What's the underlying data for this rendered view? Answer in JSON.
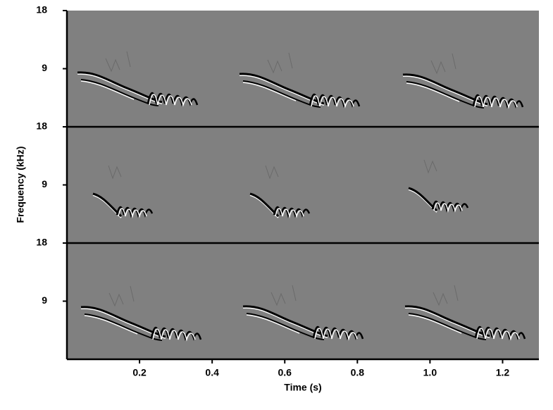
{
  "chart_data": {
    "type": "spectrogram",
    "xlabel": "Time (s)",
    "ylabel": "Frequency (kHz)",
    "xlim": [
      0,
      1.3
    ],
    "xticks": [
      0.2,
      0.4,
      0.6,
      0.8,
      {
        "value": 1,
        "label": "1.0"
      },
      1.2
    ],
    "panels": [
      {
        "ylim": [
          0,
          18
        ],
        "yticks": [
          9,
          18
        ]
      },
      {
        "ylim": [
          0,
          18
        ],
        "yticks": [
          9,
          18
        ]
      },
      {
        "ylim": [
          0,
          18
        ],
        "yticks": [
          9,
          18
        ]
      }
    ]
  }
}
